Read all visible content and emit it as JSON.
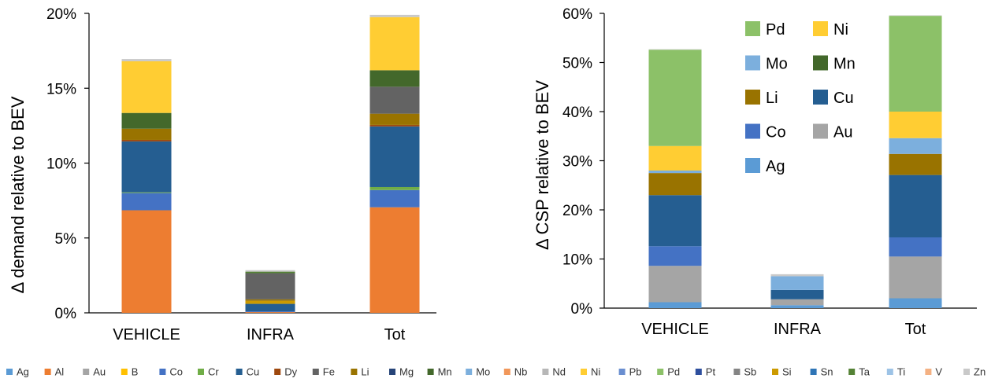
{
  "colors": {
    "Ag": "#5B9BD5",
    "Al": "#ED7D31",
    "Au": "#A5A5A5",
    "B": "#FFC000",
    "Co": "#4472C4",
    "Cr": "#70AD47",
    "Cu": "#255E91",
    "Dy": "#9E480E",
    "Fe": "#636363",
    "Li": "#997300",
    "Mg": "#264478",
    "Mn": "#43682B",
    "Mo": "#7CAFDD",
    "Nb": "#F1975A",
    "Nd": "#B7B7B7",
    "Ni": "#FFCD33",
    "Pb": "#698ED0",
    "Pd": "#8CC168",
    "Pt": "#2E4F9E",
    "Sb": "#848484",
    "Si": "#CC9A00",
    "Sn": "#2E75B6",
    "Ta": "#548235",
    "Ti": "#9DC3E6",
    "V": "#F4B183",
    "Zn": "#C9C9C9"
  },
  "chart_data": [
    {
      "type": "bar",
      "stacked": true,
      "ylabel": "Δ demand relative to BEV",
      "ylim": [
        0,
        20
      ],
      "yticks": [
        "0%",
        "5%",
        "10%",
        "15%",
        "20%"
      ],
      "categories": [
        "VEHICLE",
        "INFRA",
        "Tot"
      ],
      "series": [
        {
          "name": "Al",
          "values": [
            6.85,
            0.05,
            7.05
          ]
        },
        {
          "name": "Co",
          "values": [
            1.15,
            0.05,
            1.15
          ]
        },
        {
          "name": "Cr",
          "values": [
            0.05,
            0.0,
            0.2
          ]
        },
        {
          "name": "Cu",
          "values": [
            3.4,
            0.5,
            4.05
          ]
        },
        {
          "name": "Dy",
          "values": [
            0.1,
            0.0,
            0.1
          ]
        },
        {
          "name": "Si",
          "values": [
            0.0,
            0.2,
            0.0
          ]
        },
        {
          "name": "Li",
          "values": [
            0.75,
            0.1,
            0.75
          ]
        },
        {
          "name": "Fe",
          "values": [
            0.0,
            1.75,
            1.8
          ]
        },
        {
          "name": "Mn",
          "values": [
            1.05,
            0.0,
            1.1
          ]
        },
        {
          "name": "Ni",
          "values": [
            3.45,
            0.0,
            3.55
          ]
        },
        {
          "name": "Ta",
          "values": [
            0.0,
            0.1,
            0.0
          ]
        },
        {
          "name": "Zn",
          "values": [
            0.15,
            0.1,
            0.15
          ]
        }
      ]
    },
    {
      "type": "bar",
      "stacked": true,
      "ylabel": "Δ CSP relative to BEV",
      "ylim": [
        0,
        60
      ],
      "yticks": [
        "0%",
        "10%",
        "20%",
        "30%",
        "40%",
        "50%",
        "60%"
      ],
      "categories": [
        "VEHICLE",
        "INFRA",
        "Tot"
      ],
      "legend": [
        "Pd",
        "Ni",
        "Mo",
        "Mn",
        "Li",
        "Cu",
        "Co",
        "Au",
        "Ag"
      ],
      "series": [
        {
          "name": "Ag",
          "values": [
            1.2,
            0.6,
            2.0
          ]
        },
        {
          "name": "Au",
          "values": [
            7.4,
            1.2,
            8.5
          ]
        },
        {
          "name": "Co",
          "values": [
            4.0,
            0.0,
            3.9
          ]
        },
        {
          "name": "Cu",
          "values": [
            10.4,
            1.9,
            12.7
          ]
        },
        {
          "name": "Li",
          "values": [
            4.5,
            0.0,
            4.3
          ]
        },
        {
          "name": "Mn",
          "values": [
            0.0,
            0.0,
            0.0
          ]
        },
        {
          "name": "Mo",
          "values": [
            0.5,
            2.8,
            3.2
          ]
        },
        {
          "name": "Ni",
          "values": [
            5.0,
            0.0,
            5.4
          ]
        },
        {
          "name": "Pd",
          "values": [
            19.6,
            0.0,
            19.5
          ]
        },
        {
          "name": "Zn",
          "values": [
            0.1,
            0.4,
            0.1
          ]
        }
      ]
    }
  ],
  "bottom_legend": [
    "Ag",
    "Al",
    "Au",
    "B",
    "Co",
    "Cr",
    "Cu",
    "Dy",
    "Fe",
    "Li",
    "Mg",
    "Mn",
    "Mo",
    "Nb",
    "Nd",
    "Ni",
    "Pb",
    "Pd",
    "Pt",
    "Sb",
    "Si",
    "Sn",
    "Ta",
    "Ti",
    "V",
    "Zn"
  ]
}
